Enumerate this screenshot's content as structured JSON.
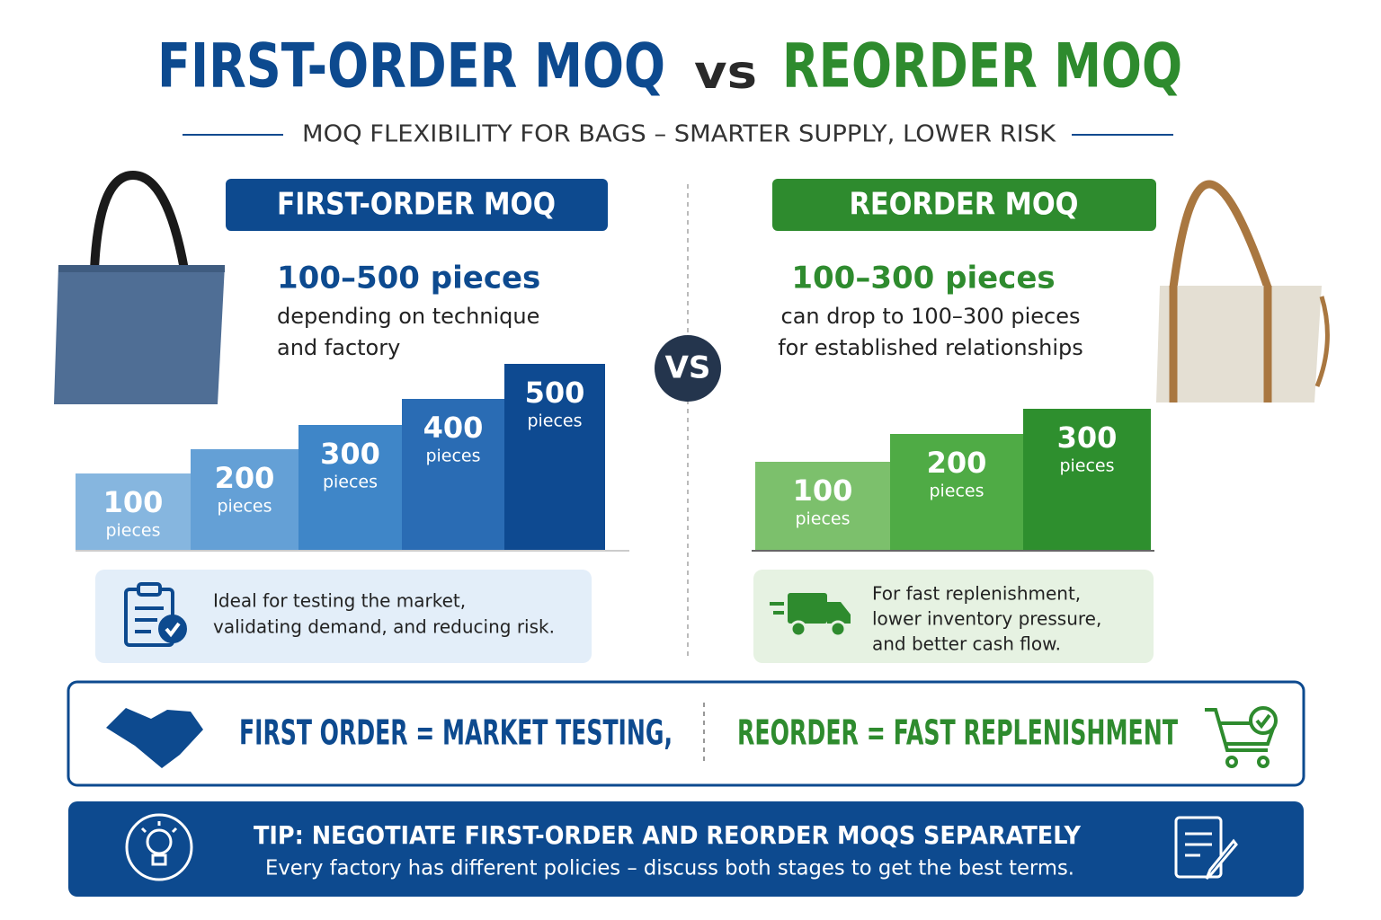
{
  "title": {
    "part1": "FIRST-ORDER MOQ",
    "vs": "vs",
    "part2": "REORDER MOQ"
  },
  "subtitle": "MOQ FLEXIBILITY FOR BAGS – SMARTER SUPPLY, LOWER RISK",
  "first_order": {
    "heading": "FIRST-ORDER MOQ",
    "range": "100–500 pieces",
    "description": [
      "depending on technique",
      "and factory"
    ],
    "steps": [
      {
        "value": 100,
        "unit": "pieces"
      },
      {
        "value": 200,
        "unit": "pieces"
      },
      {
        "value": 300,
        "unit": "pieces"
      },
      {
        "value": 400,
        "unit": "pieces"
      },
      {
        "value": 500,
        "unit": "pieces"
      }
    ],
    "note": [
      "Ideal for testing the market,",
      "validating demand, and reducing risk."
    ]
  },
  "vs_badge": "VS",
  "reorder": {
    "heading": "REORDER MOQ",
    "range": "100–300 pieces",
    "description": [
      "can drop to 100–300 pieces",
      "for established relationships"
    ],
    "steps": [
      {
        "value": 100,
        "unit": "pieces"
      },
      {
        "value": 200,
        "unit": "pieces"
      },
      {
        "value": 300,
        "unit": "pieces"
      }
    ],
    "note": [
      "For fast replenishment,",
      "lower inventory pressure,",
      "and better cash flow."
    ]
  },
  "summary": {
    "first": "FIRST ORDER = MARKET TESTING,",
    "reorder": "REORDER = FAST REPLENISHMENT"
  },
  "tip": {
    "title": "TIP: NEGOTIATE FIRST-ORDER AND REORDER MOQS SEPARATELY",
    "text": "Every factory has different policies – discuss both stages to get the best terms."
  }
}
